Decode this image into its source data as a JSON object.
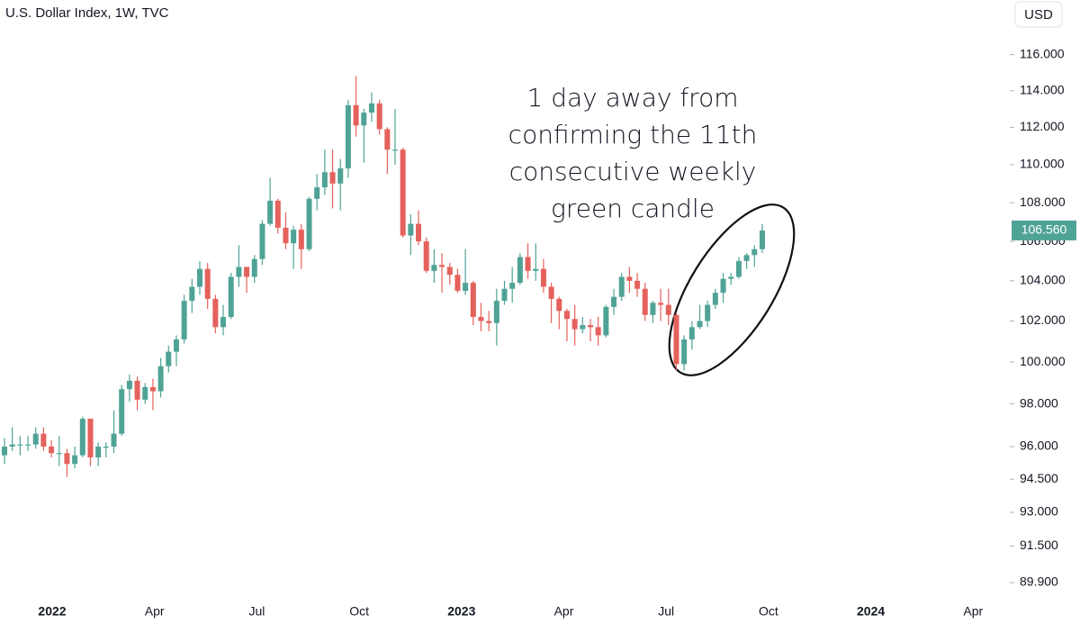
{
  "chart_data": {
    "type": "candlestick",
    "title": "U.S. Dollar Index, 1W, TVC",
    "currency_button": "USD",
    "annotation_lines": [
      "1 day away from",
      "confirming the 11th",
      "consecutive weekly",
      "green candle"
    ],
    "log_scale": true,
    "up_color": "#4fa396",
    "down_color": "#e5615c",
    "ylim": [
      89.2,
      119.1
    ],
    "yticks": [
      {
        "value": 116,
        "label": "116.000"
      },
      {
        "value": 114,
        "label": "114.000"
      },
      {
        "value": 112,
        "label": "112.000"
      },
      {
        "value": 110,
        "label": "110.000"
      },
      {
        "value": 108,
        "label": "108.000"
      },
      {
        "value": 106,
        "label": "106.000"
      },
      {
        "value": 104,
        "label": "104.000"
      },
      {
        "value": 102,
        "label": "102.000"
      },
      {
        "value": 100,
        "label": "100.000"
      },
      {
        "value": 98,
        "label": "98.000"
      },
      {
        "value": 96,
        "label": "96.000"
      },
      {
        "value": 94.5,
        "label": "94.500"
      },
      {
        "value": 93,
        "label": "93.000"
      },
      {
        "value": 91.5,
        "label": "91.500"
      },
      {
        "value": 89.9,
        "label": "89.900"
      }
    ],
    "xtick_labels": [
      "2022",
      "Apr",
      "Jul",
      "Oct",
      "2023",
      "Apr",
      "Jul",
      "Oct",
      "2024",
      "Apr"
    ],
    "last_value_label": "106.560",
    "open": [
      95.6,
      96.0,
      96.1,
      96.1,
      96.1,
      96.6,
      96.0,
      95.7,
      95.7,
      95.2,
      95.6,
      97.3,
      95.5,
      96.0,
      96.0,
      96.6,
      98.7,
      99.1,
      98.2,
      98.8,
      98.6,
      99.8,
      100.5,
      101.1,
      103.0,
      103.7,
      104.6,
      103.1,
      101.7,
      102.2,
      104.2,
      104.7,
      104.2,
      105.1,
      106.9,
      108.1,
      106.7,
      105.9,
      106.6,
      105.6,
      108.2,
      108.8,
      109.6,
      109.0,
      109.8,
      113.2,
      112.1,
      112.8,
      113.3,
      111.9,
      110.8,
      110.8,
      106.3,
      106.9,
      106.0,
      104.5,
      104.8,
      104.7,
      104.3,
      103.5,
      103.9,
      102.2,
      102.0,
      101.9,
      103.0,
      103.6,
      103.9,
      105.2,
      104.5,
      104.6,
      103.7,
      103.1,
      102.5,
      102.1,
      101.6,
      101.8,
      101.7,
      101.3,
      102.7,
      103.2,
      104.2,
      104.0,
      103.6,
      102.3,
      102.9,
      102.8,
      102.3,
      99.9,
      101.1,
      101.7,
      102.0,
      102.8,
      103.4,
      104.1,
      104.2,
      105.0,
      105.3,
      105.6
    ],
    "high": [
      96.4,
      96.9,
      96.5,
      96.5,
      96.9,
      96.9,
      96.3,
      96.5,
      95.9,
      96.0,
      97.4,
      97.3,
      96.2,
      96.2,
      97.7,
      98.9,
      99.4,
      99.3,
      99.0,
      99.2,
      100.2,
      100.8,
      101.3,
      103.3,
      104.1,
      105.0,
      104.9,
      103.3,
      102.8,
      104.4,
      105.8,
      104.7,
      105.3,
      107.1,
      109.3,
      108.2,
      107.5,
      106.8,
      106.9,
      108.3,
      109.5,
      110.8,
      110.8,
      110.3,
      113.5,
      114.8,
      113.0,
      113.9,
      113.5,
      112.0,
      113.0,
      110.9,
      107.4,
      107.6,
      106.2,
      105.6,
      105.4,
      104.9,
      104.6,
      105.6,
      104.0,
      102.9,
      102.5,
      103.6,
      104.0,
      104.7,
      105.4,
      105.9,
      105.9,
      105.1,
      103.9,
      103.2,
      102.6,
      102.8,
      102.2,
      102.1,
      102.2,
      102.8,
      103.6,
      104.4,
      104.7,
      104.4,
      103.9,
      103.0,
      103.6,
      103.6,
      102.4,
      101.3,
      102.0,
      102.8,
      103.0,
      103.6,
      104.4,
      104.4,
      105.2,
      105.4,
      105.8,
      106.9
    ],
    "low": [
      95.2,
      95.8,
      95.6,
      95.8,
      95.9,
      95.8,
      95.5,
      95.1,
      94.6,
      95.0,
      95.5,
      95.1,
      95.1,
      95.5,
      95.7,
      96.5,
      98.1,
      97.7,
      98.0,
      97.7,
      98.3,
      99.5,
      99.8,
      100.9,
      102.4,
      103.3,
      102.6,
      101.4,
      101.3,
      102.1,
      103.7,
      103.4,
      103.9,
      104.8,
      106.8,
      106.4,
      105.6,
      104.6,
      104.6,
      105.5,
      107.6,
      108.4,
      107.7,
      107.6,
      109.3,
      111.5,
      110.1,
      112.3,
      111.6,
      109.5,
      110.0,
      106.2,
      105.3,
      105.8,
      104.4,
      103.9,
      103.4,
      103.8,
      103.4,
      103.3,
      101.8,
      101.5,
      101.5,
      100.8,
      102.8,
      102.9,
      103.8,
      104.1,
      104.0,
      103.4,
      101.9,
      101.6,
      101.0,
      100.8,
      101.4,
      101.0,
      100.8,
      101.2,
      102.3,
      103.0,
      103.4,
      103.2,
      102.0,
      101.9,
      102.0,
      101.8,
      99.6,
      99.6,
      100.6,
      101.6,
      101.7,
      102.6,
      102.9,
      103.8,
      104.1,
      104.6,
      104.7,
      105.4
    ],
    "close": [
      96.0,
      96.1,
      96.1,
      96.1,
      96.6,
      96.0,
      95.7,
      95.7,
      95.2,
      95.6,
      97.3,
      95.5,
      96.0,
      96.0,
      96.6,
      98.7,
      99.1,
      98.2,
      98.8,
      98.6,
      99.8,
      100.5,
      101.1,
      103.0,
      103.7,
      104.6,
      103.1,
      101.7,
      102.2,
      104.2,
      104.7,
      104.2,
      105.1,
      106.9,
      108.1,
      106.7,
      105.9,
      106.6,
      105.6,
      108.2,
      108.8,
      109.6,
      109.0,
      109.8,
      113.2,
      112.1,
      112.8,
      113.3,
      111.9,
      110.8,
      110.8,
      106.3,
      106.9,
      106.0,
      104.5,
      104.8,
      104.7,
      104.3,
      103.5,
      103.9,
      102.2,
      102.0,
      101.9,
      103.0,
      103.6,
      103.9,
      105.2,
      104.5,
      104.6,
      103.7,
      103.1,
      102.5,
      102.1,
      101.6,
      101.8,
      101.7,
      101.3,
      102.7,
      103.2,
      104.2,
      104.0,
      103.6,
      102.3,
      102.9,
      102.8,
      102.3,
      99.9,
      101.1,
      101.7,
      102.0,
      102.8,
      103.4,
      104.1,
      104.2,
      105.0,
      105.3,
      105.6,
      106.56
    ]
  }
}
